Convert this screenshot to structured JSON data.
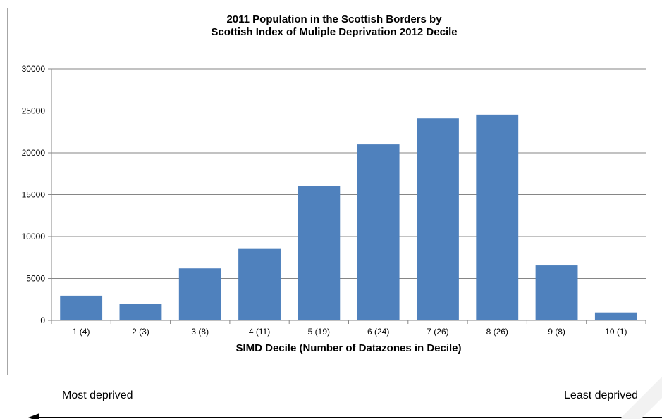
{
  "chart_data": {
    "type": "bar",
    "title_lines": [
      "2011 Population in the Scottish Borders by",
      "Scottish Index of Muliple Deprivation 2012 Decile"
    ],
    "xlabel": "SIMD Decile (Number of Datazones in Decile)",
    "ylabel": "",
    "categories": [
      "1 (4)",
      "2 (3)",
      "3 (8)",
      "4 (11)",
      "5 (19)",
      "6 (24)",
      "7 (26)",
      "8 (26)",
      "9 (8)",
      "10 (1)"
    ],
    "values": [
      2950,
      2000,
      6200,
      8600,
      16050,
      21000,
      24100,
      24550,
      6550,
      950
    ],
    "ylim": [
      0,
      30000
    ],
    "yticks": [
      0,
      5000,
      10000,
      15000,
      20000,
      25000,
      30000
    ],
    "grid": true,
    "legend": "none",
    "bar_color": "#4f81bd"
  },
  "annotations": {
    "left": "Most deprived",
    "right": "Least deprived"
  }
}
